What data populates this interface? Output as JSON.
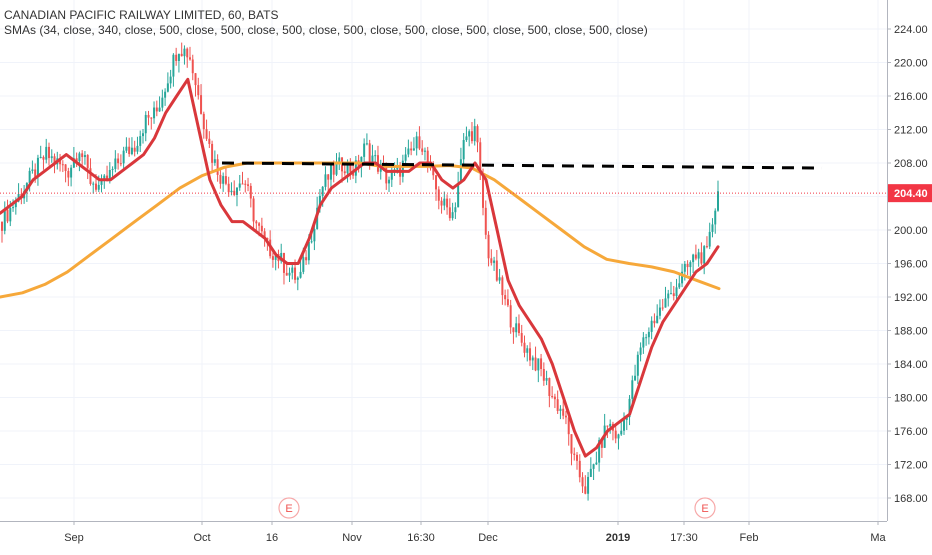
{
  "legend": {
    "title": "CANADIAN PACIFIC RAILWAY LIMITED, 60, BATS",
    "indicators": "SMAs (34, close, 340, close, 500, close, 500, close, 500, close, 500, close, 500, close, 500, close, 500, close, 500, close)"
  },
  "chart_data": {
    "type": "line",
    "ylim": [
      166,
      226
    ],
    "y_ticks": [
      168,
      172,
      176,
      180,
      184,
      188,
      192,
      196,
      200,
      204,
      208,
      212,
      216,
      220,
      224
    ],
    "x_ticks": [
      "Sep",
      "Oct",
      "16",
      "Nov",
      "16:30",
      "Dec",
      "2019",
      "17:30",
      "Feb",
      "Ma"
    ],
    "last_price": {
      "label": "204.40",
      "value": 204.4,
      "color": "#f23645"
    },
    "earnings_markers": [
      "E",
      "E"
    ],
    "colors": {
      "sma_short": "#d9373b",
      "sma_long": "#f6a83a",
      "candle_up": "#26a69a",
      "candle_down": "#ef5350",
      "trendline": "#000000"
    },
    "series": [
      {
        "role": "price-trace",
        "values": [
          201,
          203,
          205,
          207,
          209,
          208,
          207,
          210,
          206,
          205,
          207,
          209,
          210,
          213,
          214,
          218,
          222,
          221,
          215,
          209,
          206,
          205,
          206,
          201,
          198,
          197,
          195,
          194,
          199,
          205,
          207,
          208,
          207,
          210,
          208,
          206,
          207,
          209,
          211,
          206,
          203,
          202,
          211,
          212,
          198,
          194,
          190,
          187,
          185,
          183,
          180,
          178,
          172,
          169,
          173,
          177,
          175,
          180,
          186,
          189,
          191,
          193,
          195,
          197,
          197,
          205
        ]
      },
      {
        "role": "sma-34",
        "values": [
          202,
          203,
          204,
          206,
          207,
          208,
          209,
          208,
          207,
          206,
          206,
          207,
          208,
          209,
          211,
          214,
          216,
          218,
          212,
          206,
          203,
          201,
          201,
          200,
          199,
          197,
          196,
          196,
          199,
          203,
          205,
          206,
          207,
          208,
          208,
          207,
          207,
          207,
          208,
          208,
          206,
          205,
          206,
          208,
          206,
          200,
          194,
          191,
          189,
          187,
          184,
          180,
          176,
          173,
          174,
          176,
          177,
          178,
          182,
          186,
          189,
          191,
          193,
          195,
          196,
          198
        ]
      },
      {
        "role": "sma-340",
        "values": [
          192,
          192.5,
          193.5,
          195,
          197,
          199,
          201,
          203,
          205,
          206.5,
          207.5,
          208,
          208,
          208,
          208,
          208,
          208,
          207.6,
          207.6,
          207.6,
          207.7,
          207.4,
          206,
          204,
          202,
          200,
          198,
          196.5,
          196,
          195.6,
          195,
          194,
          193
        ]
      }
    ],
    "trendline": {
      "values": [
        208,
        207.4
      ]
    }
  }
}
